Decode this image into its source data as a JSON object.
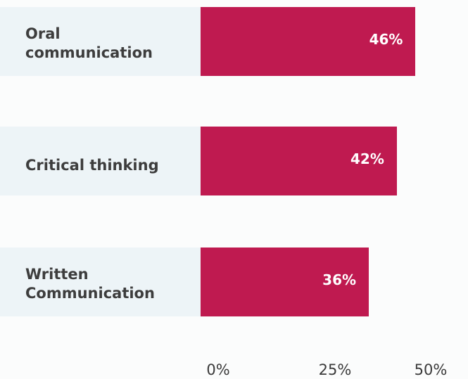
{
  "chart_data": {
    "type": "bar",
    "orientation": "horizontal",
    "categories": [
      "Oral\ncommunication",
      "Critical thinking",
      "Written\nCommunication"
    ],
    "values": [
      46,
      42,
      36
    ],
    "value_labels": [
      "46%",
      "42%",
      "36%"
    ],
    "xlim": [
      0,
      50
    ],
    "x_ticks": [
      "0%",
      "25%",
      "50%"
    ],
    "x_tick_values": [
      0,
      25,
      50
    ],
    "grid": false,
    "colors": {
      "bar": "#bf1a50",
      "label_band": "#edf4f7",
      "value_text": "#ffffff"
    }
  }
}
